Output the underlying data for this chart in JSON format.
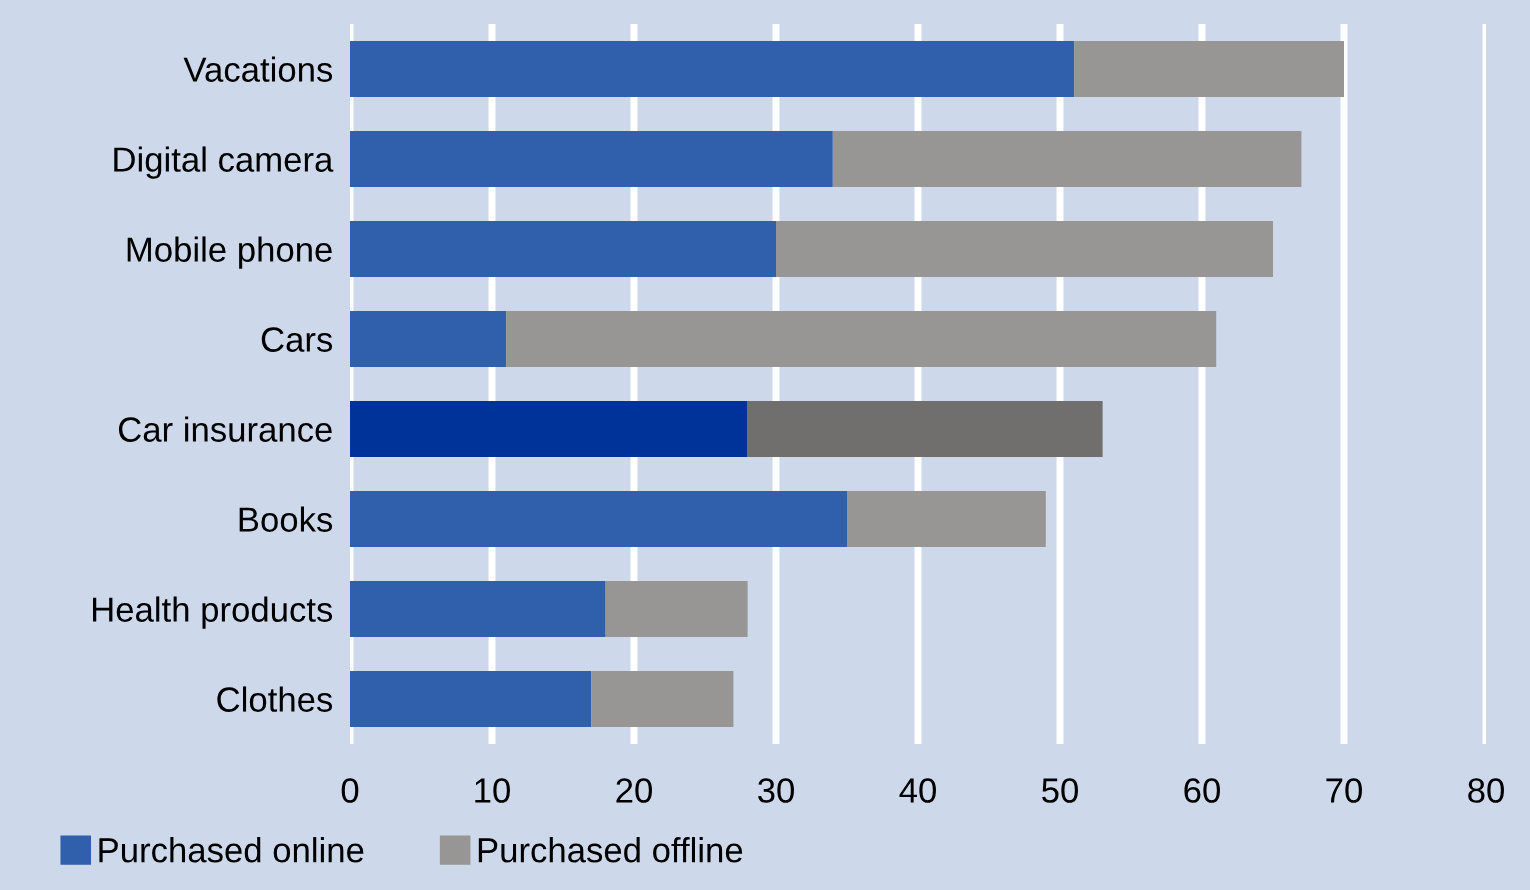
{
  "chart_data": {
    "type": "bar",
    "orientation": "horizontal",
    "stacked": true,
    "categories": [
      "Vacations",
      "Digital camera",
      "Mobile phone",
      "Cars",
      "Car insurance",
      "Books",
      "Health products",
      "Clothes"
    ],
    "series": [
      {
        "name": "Purchased online",
        "color": "#3060ab",
        "colors": [
          "#3060ab",
          "#3060ab",
          "#3060ab",
          "#3060ab",
          "#003399",
          "#3060ab",
          "#3060ab",
          "#3060ab"
        ],
        "values": [
          51,
          34,
          30,
          11,
          28,
          35,
          18,
          17
        ]
      },
      {
        "name": "Purchased offline",
        "color": "#979694",
        "colors": [
          "#979694",
          "#979694",
          "#979694",
          "#979694",
          "#706f6d",
          "#979694",
          "#979694",
          "#979694"
        ],
        "values": [
          19,
          33,
          35,
          50,
          25,
          14,
          10,
          10
        ]
      }
    ],
    "xlim": [
      0,
      80
    ],
    "xticks": [
      0,
      10,
      20,
      30,
      40,
      50,
      60,
      70,
      80
    ],
    "grid": "x",
    "legend": "bottom left"
  }
}
